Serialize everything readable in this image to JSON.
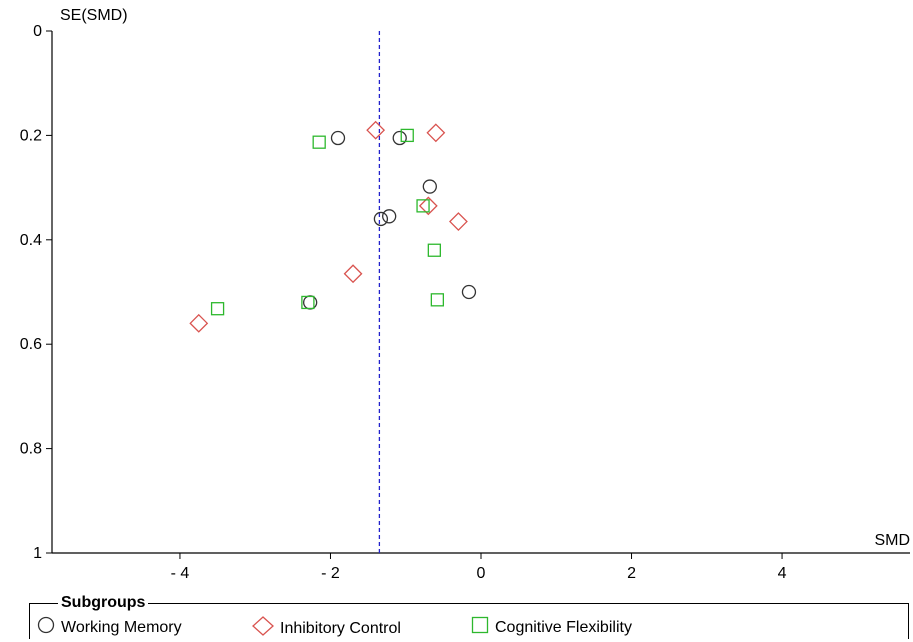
{
  "chart_data": {
    "type": "scatter",
    "xlabel": "SMD",
    "ylabel": "SE(SMD)",
    "xlim": [
      -5.7,
      5.7
    ],
    "ylim": [
      0,
      1
    ],
    "y_inverted": true,
    "x_ticks": [
      -4,
      -2,
      0,
      2,
      4
    ],
    "x_tick_labels": [
      "- 4",
      "- 2",
      "0",
      "2",
      "4"
    ],
    "y_ticks": [
      0,
      0.2,
      0.4,
      0.6,
      0.8,
      1
    ],
    "y_tick_labels": [
      "0",
      "0.2",
      "0.4",
      "0.6",
      "0.8",
      "1"
    ],
    "reference_line": {
      "x": -1.35,
      "style": "dashed",
      "color": "#2222cc"
    },
    "grid": false,
    "legend_title": "Subgroups",
    "legend_position": "bottom",
    "series": [
      {
        "name": "Working Memory",
        "marker": "circle",
        "color": "#333333",
        "points": [
          {
            "x": -1.9,
            "y": 0.205
          },
          {
            "x": -1.08,
            "y": 0.205
          },
          {
            "x": -0.68,
            "y": 0.298
          },
          {
            "x": -1.33,
            "y": 0.36
          },
          {
            "x": -1.22,
            "y": 0.355
          },
          {
            "x": -2.27,
            "y": 0.52
          },
          {
            "x": -0.16,
            "y": 0.5
          }
        ]
      },
      {
        "name": "Inhibitory Control",
        "marker": "diamond",
        "color": "#d9534f",
        "points": [
          {
            "x": -1.4,
            "y": 0.19
          },
          {
            "x": -0.6,
            "y": 0.195
          },
          {
            "x": -0.7,
            "y": 0.335
          },
          {
            "x": -0.3,
            "y": 0.365
          },
          {
            "x": -1.7,
            "y": 0.465
          },
          {
            "x": -3.75,
            "y": 0.56
          }
        ]
      },
      {
        "name": "Cognitive Flexibility",
        "marker": "square",
        "color": "#2db82d",
        "points": [
          {
            "x": -2.15,
            "y": 0.213
          },
          {
            "x": -0.98,
            "y": 0.2
          },
          {
            "x": -0.77,
            "y": 0.335
          },
          {
            "x": -0.62,
            "y": 0.42
          },
          {
            "x": -0.58,
            "y": 0.515
          },
          {
            "x": -2.3,
            "y": 0.52
          },
          {
            "x": -3.5,
            "y": 0.532
          }
        ]
      }
    ]
  }
}
